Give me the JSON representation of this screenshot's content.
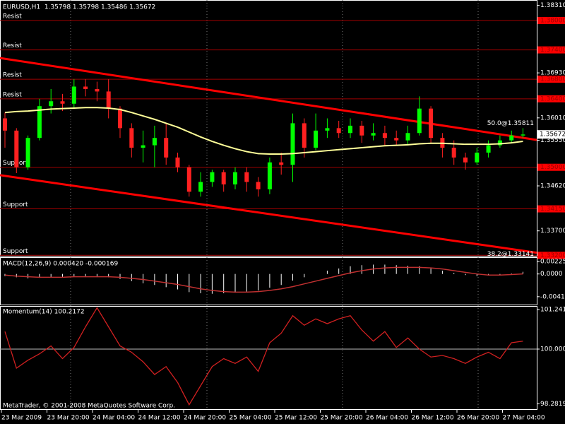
{
  "chart_data": [
    {
      "type": "candlestick",
      "title": "EURUSD,H1  1.35798 1.35798 1.35486 1.35672",
      "time_labels": [
        "23 Mar 2009",
        "23 Mar 20:00",
        "24 Mar 04:00",
        "24 Mar 12:00",
        "24 Mar 20:00",
        "25 Mar 04:00",
        "25 Mar 12:00",
        "25 Mar 20:00",
        "26 Mar 04:00",
        "26 Mar 12:00",
        "26 Mar 20:00",
        "27 Mar 04:00"
      ],
      "open": [
        1.36,
        1.3575,
        1.35,
        1.356,
        1.3625,
        1.3635,
        1.363,
        1.3665,
        1.366,
        1.3655,
        1.362,
        1.358,
        1.354,
        1.3545,
        1.356,
        1.352,
        1.35,
        1.345,
        1.347,
        1.349,
        1.3465,
        1.349,
        1.347,
        1.3455,
        1.351,
        1.3505,
        1.359,
        1.354,
        1.3575,
        1.358,
        1.357,
        1.3585,
        1.3565,
        1.357,
        1.356,
        1.3555,
        1.357,
        1.362,
        1.356,
        1.354,
        1.352,
        1.351,
        1.353,
        1.3545,
        1.3555,
        1.3565
      ],
      "high": [
        1.3612,
        1.358,
        1.3565,
        1.364,
        1.366,
        1.365,
        1.368,
        1.368,
        1.3675,
        1.368,
        1.3625,
        1.359,
        1.3575,
        1.3585,
        1.359,
        1.353,
        1.3505,
        1.349,
        1.3495,
        1.3495,
        1.35,
        1.35,
        1.348,
        1.352,
        1.353,
        1.361,
        1.36,
        1.361,
        1.36,
        1.3595,
        1.36,
        1.3595,
        1.359,
        1.3585,
        1.3575,
        1.3585,
        1.3645,
        1.3625,
        1.357,
        1.3555,
        1.353,
        1.354,
        1.3555,
        1.3565,
        1.3575,
        1.358
      ],
      "low": [
        1.354,
        1.3488,
        1.3495,
        1.3555,
        1.361,
        1.3615,
        1.362,
        1.3645,
        1.3635,
        1.36,
        1.356,
        1.352,
        1.351,
        1.35,
        1.3505,
        1.349,
        1.344,
        1.344,
        1.346,
        1.345,
        1.3455,
        1.345,
        1.344,
        1.3445,
        1.3485,
        1.347,
        1.352,
        1.3535,
        1.356,
        1.356,
        1.356,
        1.355,
        1.3555,
        1.3545,
        1.3545,
        1.3545,
        1.3565,
        1.355,
        1.352,
        1.3505,
        1.3495,
        1.3505,
        1.352,
        1.354,
        1.355,
        1.356
      ],
      "close": [
        1.3575,
        1.35,
        1.356,
        1.3625,
        1.3635,
        1.363,
        1.3665,
        1.366,
        1.3655,
        1.362,
        1.358,
        1.354,
        1.3545,
        1.356,
        1.352,
        1.35,
        1.345,
        1.347,
        1.349,
        1.3465,
        1.349,
        1.347,
        1.3455,
        1.351,
        1.3505,
        1.359,
        1.354,
        1.3575,
        1.358,
        1.357,
        1.3585,
        1.3565,
        1.357,
        1.356,
        1.3555,
        1.357,
        1.362,
        1.356,
        1.354,
        1.352,
        1.351,
        1.353,
        1.3545,
        1.3555,
        1.3565,
        1.3567
      ],
      "up_color": "#00ff00",
      "down_color": "#ff2020",
      "moving_average": {
        "color": "#ffff99",
        "values": [
          1.3612,
          1.3614,
          1.3615,
          1.3617,
          1.3619,
          1.362,
          1.3621,
          1.3622,
          1.3622,
          1.3621,
          1.3618,
          1.3612,
          1.3605,
          1.3598,
          1.359,
          1.3582,
          1.3572,
          1.3562,
          1.3553,
          1.3545,
          1.3538,
          1.3532,
          1.3528,
          1.3527,
          1.3527,
          1.3528,
          1.353,
          1.3532,
          1.3534,
          1.3536,
          1.3538,
          1.354,
          1.3542,
          1.3544,
          1.3545,
          1.3546,
          1.3548,
          1.3549,
          1.3549,
          1.3548,
          1.3547,
          1.3547,
          1.3547,
          1.3548,
          1.355,
          1.3553
        ]
      },
      "trendlines": [
        {
          "start": 1.37233,
          "end": 1.3556,
          "color": "#ff0000"
        },
        {
          "start": 1.34839,
          "end": 1.33253,
          "color": "#ff0000"
        }
      ],
      "levels": [
        {
          "value": 1.38,
          "label": "1.38000",
          "name": "Resist"
        },
        {
          "value": 1.374,
          "label": "1.37400",
          "name": "Resist"
        },
        {
          "value": 1.368,
          "label": "1.36800",
          "name": "Resist"
        },
        {
          "value": 1.364,
          "label": "1.36400",
          "name": "Resist"
        },
        {
          "value": 1.35,
          "label": "1.35000",
          "name": "Support"
        },
        {
          "value": 1.3415,
          "label": "1.34150",
          "name": "Support"
        },
        {
          "value": 1.332,
          "label": "1.33200",
          "name": "Support"
        }
      ],
      "current_price": {
        "value": 1.35672,
        "label": "1.35672"
      },
      "annotations": [
        {
          "value": 1.35811,
          "label": "50.0@1.35811"
        },
        {
          "value": 1.33141,
          "label": "38.2@1.33141"
        }
      ],
      "ylim": [
        1.3319,
        1.3842
      ],
      "yticks": [
        {
          "value": 1.3831,
          "label": "1.38310"
        },
        {
          "value": 1.3693,
          "label": "1.36930"
        },
        {
          "value": 1.3601,
          "label": "1.36010"
        },
        {
          "value": 1.3555,
          "label": "1.35550"
        },
        {
          "value": 1.3462,
          "label": "1.34620"
        },
        {
          "value": 1.337,
          "label": "1.33700"
        }
      ]
    },
    {
      "type": "macd",
      "title": "MACD(12,26,9) 0.000420 -0.000169",
      "histogram": {
        "color": "#ffffff",
        "values": [
          -0.0004,
          -0.0006,
          -0.0008,
          -0.0007,
          -0.0006,
          -0.0005,
          -0.0004,
          -0.0004,
          -0.0005,
          -0.0006,
          -0.0009,
          -0.0013,
          -0.0017,
          -0.002,
          -0.0024,
          -0.0028,
          -0.0033,
          -0.0035,
          -0.0036,
          -0.0035,
          -0.0034,
          -0.0032,
          -0.003,
          -0.0025,
          -0.002,
          -0.0012,
          -0.0006,
          0.0,
          0.0006,
          0.001,
          0.0014,
          0.0016,
          0.0017,
          0.0017,
          0.0016,
          0.0015,
          0.0014,
          0.001,
          0.0006,
          0.0002,
          -0.0002,
          -0.0004,
          -0.0003,
          -0.0002,
          0.0001,
          0.0004
        ]
      },
      "signal": {
        "color": "#c03030",
        "values": [
          -0.0002,
          -0.0004,
          -0.0005,
          -0.0006,
          -0.0006,
          -0.0006,
          -0.0005,
          -0.0005,
          -0.0005,
          -0.0005,
          -0.0006,
          -0.0008,
          -0.001,
          -0.0013,
          -0.0016,
          -0.0019,
          -0.0023,
          -0.0027,
          -0.003,
          -0.0032,
          -0.0033,
          -0.0033,
          -0.0032,
          -0.003,
          -0.0027,
          -0.0023,
          -0.0018,
          -0.0013,
          -0.0008,
          -0.0003,
          0.0002,
          0.0006,
          0.0009,
          0.0011,
          0.0012,
          0.0012,
          0.0012,
          0.0011,
          0.0009,
          0.0006,
          0.0003,
          0.0,
          -0.0002,
          -0.0002,
          -0.0001,
          0.0
        ]
      },
      "ylim": [
        -0.005564,
        0.002914
      ],
      "yticks": [
        0.002252,
        {
          "value": 0,
          "label": "0.0000"
        },
        -0.00413
      ]
    },
    {
      "type": "line",
      "title": "Momentum(14) 100.2172",
      "color": "#d02020",
      "values": [
        100.55,
        99.4,
        99.65,
        99.85,
        100.1,
        99.7,
        100.05,
        100.7,
        101.3,
        100.7,
        100.1,
        99.9,
        99.6,
        99.2,
        99.45,
        98.95,
        98.25,
        98.85,
        99.45,
        99.7,
        99.55,
        99.75,
        99.3,
        100.2,
        100.5,
        101.05,
        100.75,
        100.95,
        100.8,
        100.95,
        101.05,
        100.6,
        100.25,
        100.55,
        100.05,
        100.35,
        100.0,
        99.75,
        99.8,
        99.7,
        99.55,
        99.75,
        99.9,
        99.7,
        100.2,
        100.25
      ],
      "ylim": [
        98.133,
        101.333
      ],
      "yticks": [
        101.241,
        {
          "value": 100,
          "label": "100.0000"
        },
        98.2819
      ]
    }
  ],
  "footer": "MetaTrader, © 2001-2008 MetaQuotes Software Corp."
}
